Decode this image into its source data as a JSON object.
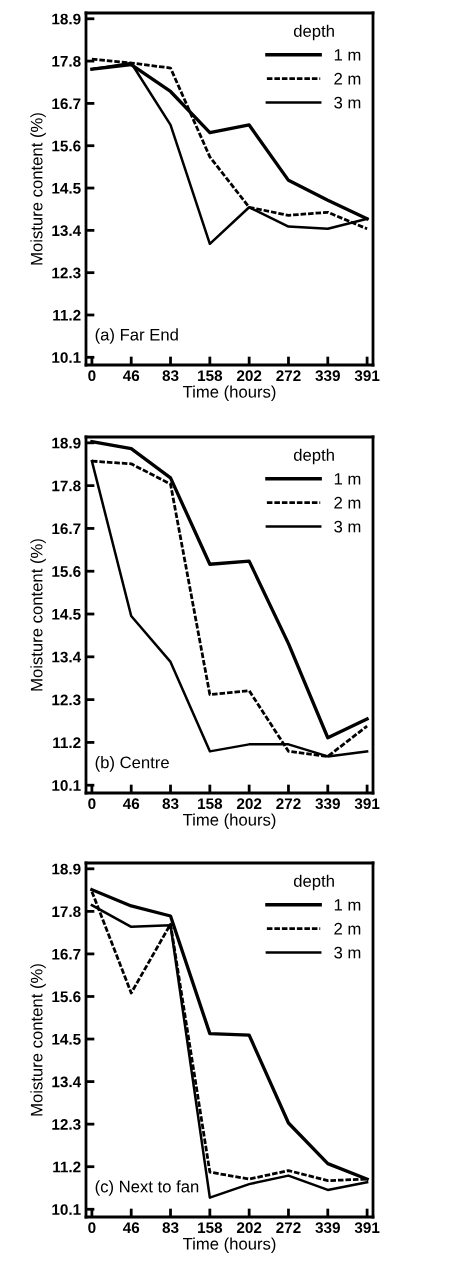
{
  "chart_data": [
    {
      "type": "line",
      "annotations": [
        "(a) Far End"
      ],
      "xlabel": "Time (hours)",
      "ylabel": "Moisture content (%)",
      "legend_title": "depth",
      "legend": "top right",
      "grid": false,
      "categories": [
        "0",
        "46",
        "83",
        "158",
        "202",
        "272",
        "339",
        "391"
      ],
      "ylim": [
        9.9,
        19.05
      ],
      "yticks": [
        10.1,
        11.2,
        12.3,
        13.4,
        14.5,
        15.6,
        16.7,
        17.8,
        18.9
      ],
      "series": [
        {
          "name": "1 m",
          "color": "#000000",
          "line_style": "solid",
          "values": [
            17.59,
            17.71,
            17.01,
            15.94,
            16.14,
            14.7,
            14.18,
            13.7
          ]
        },
        {
          "name": "2 m",
          "color": "#000000",
          "line_style": "dashed",
          "values": [
            17.85,
            17.75,
            17.62,
            15.31,
            14.0,
            13.79,
            13.87,
            13.44
          ]
        },
        {
          "name": "3 m",
          "color": "#000000",
          "line_style": "solid",
          "values": [
            17.59,
            17.75,
            16.14,
            13.05,
            14.0,
            13.5,
            13.44,
            13.7
          ]
        }
      ]
    },
    {
      "type": "line",
      "annotations": [
        "(b) Centre"
      ],
      "xlabel": "Time (hours)",
      "ylabel": "Moisture content (%)",
      "legend_title": "depth",
      "legend": "top right",
      "grid": false,
      "categories": [
        "0",
        "46",
        "83",
        "158",
        "202",
        "272",
        "339",
        "391"
      ],
      "ylim": [
        9.9,
        19.05
      ],
      "yticks": [
        10.1,
        11.2,
        12.3,
        13.4,
        14.5,
        15.6,
        16.7,
        17.8,
        18.9
      ],
      "series": [
        {
          "name": "1 m",
          "color": "#000000",
          "line_style": "solid",
          "values": [
            18.93,
            18.75,
            18.0,
            15.78,
            15.86,
            13.74,
            11.32,
            11.8
          ]
        },
        {
          "name": "2 m",
          "color": "#000000",
          "line_style": "dashed",
          "values": [
            18.43,
            18.36,
            17.84,
            12.43,
            12.53,
            10.97,
            10.84,
            11.62
          ]
        },
        {
          "name": "3 m",
          "color": "#000000",
          "line_style": "solid",
          "values": [
            18.43,
            14.45,
            13.27,
            10.97,
            11.15,
            11.15,
            10.84,
            10.97
          ]
        }
      ]
    },
    {
      "type": "line",
      "annotations": [
        "(c) Next to fan"
      ],
      "xlabel": "Time (hours)",
      "ylabel": "Moisture content (%)",
      "legend_title": "depth",
      "legend": "top right",
      "grid": false,
      "categories": [
        "0",
        "46",
        "83",
        "158",
        "202",
        "272",
        "339",
        "391"
      ],
      "ylim": [
        9.9,
        19.05
      ],
      "yticks": [
        10.1,
        11.2,
        12.3,
        13.4,
        14.5,
        15.6,
        16.7,
        17.8,
        18.9
      ],
      "series": [
        {
          "name": "1 m",
          "color": "#000000",
          "line_style": "solid",
          "values": [
            18.36,
            17.94,
            17.68,
            14.64,
            14.6,
            12.33,
            11.28,
            10.88
          ]
        },
        {
          "name": "2 m",
          "color": "#000000",
          "line_style": "dashed",
          "values": [
            18.31,
            15.69,
            17.47,
            11.06,
            10.88,
            11.1,
            10.84,
            10.88
          ]
        },
        {
          "name": "3 m",
          "color": "#000000",
          "line_style": "solid",
          "values": [
            17.96,
            17.4,
            17.44,
            10.4,
            10.75,
            10.97,
            10.6,
            10.8
          ]
        }
      ]
    }
  ]
}
